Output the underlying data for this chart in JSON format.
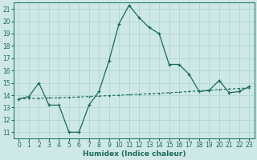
{
  "title": "",
  "xlabel": "Humidex (Indice chaleur)",
  "ylabel": "",
  "background_color": "#cde8e5",
  "grid_color": "#b0d8d4",
  "line_color": "#1a6b5a",
  "xlim": [
    -0.5,
    23.5
  ],
  "ylim": [
    10.5,
    21.5
  ],
  "xticks": [
    0,
    1,
    2,
    3,
    4,
    5,
    6,
    7,
    8,
    9,
    10,
    11,
    12,
    13,
    14,
    15,
    16,
    17,
    18,
    19,
    20,
    21,
    22,
    23
  ],
  "yticks": [
    11,
    12,
    13,
    14,
    15,
    16,
    17,
    18,
    19,
    20,
    21
  ],
  "curve1_x": [
    0,
    1,
    2,
    3,
    4,
    5,
    6,
    7,
    8,
    9,
    10,
    11,
    12,
    13,
    14,
    15,
    16,
    17,
    18,
    19,
    20,
    21,
    22,
    23
  ],
  "curve1_y": [
    13.7,
    13.9,
    15.0,
    13.2,
    13.2,
    11.0,
    11.0,
    13.2,
    14.3,
    16.8,
    19.8,
    21.3,
    20.3,
    19.5,
    19.0,
    16.5,
    16.5,
    15.7,
    14.3,
    14.4,
    15.2,
    14.2,
    14.3,
    14.7
  ],
  "curve2_x": [
    0,
    1,
    2,
    3,
    4,
    5,
    6,
    7,
    8,
    9,
    10,
    11,
    12,
    13,
    14,
    15,
    16,
    17,
    18,
    19,
    20,
    21,
    22,
    23
  ],
  "curve2_y": [
    13.7,
    13.72,
    13.75,
    13.78,
    13.8,
    13.83,
    13.86,
    13.9,
    13.93,
    13.97,
    14.0,
    14.04,
    14.08,
    14.12,
    14.16,
    14.2,
    14.25,
    14.3,
    14.35,
    14.4,
    14.45,
    14.5,
    14.55,
    14.6
  ],
  "xlabel_fontsize": 6.5,
  "tick_fontsize": 5.5,
  "linewidth1": 0.9,
  "linewidth2": 0.8,
  "markersize1": 2.5,
  "markersize2": 2.0
}
